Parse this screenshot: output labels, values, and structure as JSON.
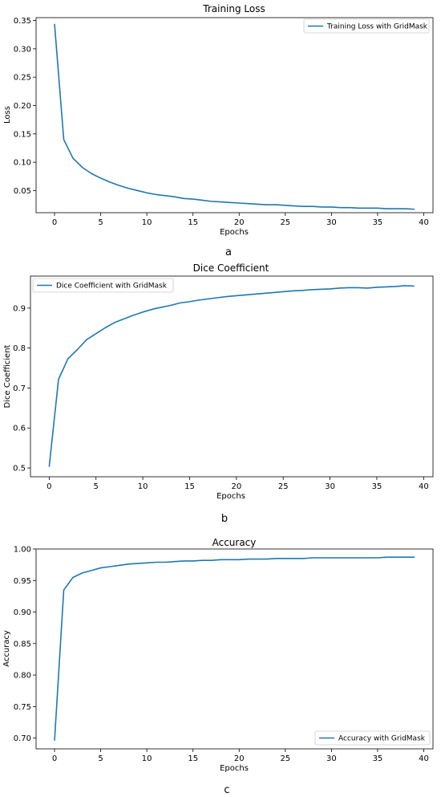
{
  "chart_data": [
    {
      "type": "line",
      "title": "Training Loss",
      "xlabel": "Epochs",
      "ylabel": "Loss",
      "caption": "a",
      "xlim": [
        -2,
        41
      ],
      "ylim": [
        0.011,
        0.355
      ],
      "xticks": [
        0,
        5,
        10,
        15,
        20,
        25,
        30,
        35,
        40
      ],
      "yticks": [
        0.05,
        0.1,
        0.15,
        0.2,
        0.25,
        0.3,
        0.35
      ],
      "ytick_labels": [
        "0.05",
        "0.10",
        "0.15",
        "0.20",
        "0.25",
        "0.30",
        "0.35"
      ],
      "legend_position": "top-right",
      "series": [
        {
          "name": "Training Loss with GridMask",
          "color": "#1f77b4",
          "x": [
            0,
            1,
            2,
            3,
            4,
            5,
            6,
            7,
            8,
            9,
            10,
            11,
            12,
            13,
            14,
            15,
            16,
            17,
            18,
            19,
            20,
            21,
            22,
            23,
            24,
            25,
            26,
            27,
            28,
            29,
            30,
            31,
            32,
            33,
            34,
            35,
            36,
            37,
            38,
            39
          ],
          "values": [
            0.344,
            0.14,
            0.107,
            0.091,
            0.08,
            0.072,
            0.065,
            0.059,
            0.054,
            0.05,
            0.046,
            0.043,
            0.041,
            0.039,
            0.036,
            0.035,
            0.033,
            0.031,
            0.03,
            0.029,
            0.028,
            0.027,
            0.026,
            0.025,
            0.025,
            0.024,
            0.023,
            0.022,
            0.022,
            0.021,
            0.021,
            0.02,
            0.02,
            0.019,
            0.019,
            0.019,
            0.018,
            0.018,
            0.018,
            0.017
          ]
        }
      ]
    },
    {
      "type": "line",
      "title": "Dice Coefficient",
      "xlabel": "Epochs",
      "ylabel": "Dice Coefficient",
      "caption": "b",
      "xlim": [
        -2,
        41
      ],
      "ylim": [
        0.478,
        0.98
      ],
      "xticks": [
        0,
        5,
        10,
        15,
        20,
        25,
        30,
        35,
        40
      ],
      "yticks": [
        0.5,
        0.6,
        0.7,
        0.8,
        0.9
      ],
      "ytick_labels": [
        "0.5",
        "0.6",
        "0.7",
        "0.8",
        "0.9"
      ],
      "legend_position": "top-left",
      "series": [
        {
          "name": "Dice Coefficient with GridMask",
          "color": "#1f77b4",
          "x": [
            0,
            1,
            2,
            3,
            4,
            5,
            6,
            7,
            8,
            9,
            10,
            11,
            12,
            13,
            14,
            15,
            16,
            17,
            18,
            19,
            20,
            21,
            22,
            23,
            24,
            25,
            26,
            27,
            28,
            29,
            30,
            31,
            32,
            33,
            34,
            35,
            36,
            37,
            38,
            39
          ],
          "values": [
            0.503,
            0.722,
            0.773,
            0.796,
            0.821,
            0.836,
            0.851,
            0.864,
            0.873,
            0.882,
            0.89,
            0.897,
            0.902,
            0.907,
            0.913,
            0.916,
            0.92,
            0.923,
            0.926,
            0.929,
            0.931,
            0.933,
            0.935,
            0.937,
            0.939,
            0.941,
            0.943,
            0.944,
            0.946,
            0.947,
            0.948,
            0.95,
            0.951,
            0.951,
            0.95,
            0.952,
            0.953,
            0.954,
            0.956,
            0.955
          ]
        }
      ]
    },
    {
      "type": "line",
      "title": "Accuracy",
      "xlabel": "Epochs",
      "ylabel": "Accuracy",
      "caption": "c",
      "xlim": [
        -2,
        41
      ],
      "ylim": [
        0.683,
        1.0
      ],
      "xticks": [
        0,
        5,
        10,
        15,
        20,
        25,
        30,
        35,
        40
      ],
      "yticks": [
        0.7,
        0.75,
        0.8,
        0.85,
        0.9,
        0.95,
        1.0
      ],
      "ytick_labels": [
        "0.70",
        "0.75",
        "0.80",
        "0.85",
        "0.90",
        "0.95",
        "1.00"
      ],
      "legend_position": "bottom-right",
      "series": [
        {
          "name": "Accuracy with GridMask",
          "color": "#1f77b4",
          "x": [
            0,
            1,
            2,
            3,
            4,
            5,
            6,
            7,
            8,
            9,
            10,
            11,
            12,
            13,
            14,
            15,
            16,
            17,
            18,
            19,
            20,
            21,
            22,
            23,
            24,
            25,
            26,
            27,
            28,
            29,
            30,
            31,
            32,
            33,
            34,
            35,
            36,
            37,
            38,
            39
          ],
          "values": [
            0.696,
            0.935,
            0.955,
            0.962,
            0.966,
            0.97,
            0.972,
            0.974,
            0.976,
            0.977,
            0.978,
            0.979,
            0.979,
            0.98,
            0.981,
            0.981,
            0.982,
            0.982,
            0.983,
            0.983,
            0.983,
            0.984,
            0.984,
            0.984,
            0.985,
            0.985,
            0.985,
            0.985,
            0.986,
            0.986,
            0.986,
            0.986,
            0.986,
            0.986,
            0.986,
            0.986,
            0.987,
            0.987,
            0.987,
            0.987
          ]
        }
      ]
    }
  ]
}
